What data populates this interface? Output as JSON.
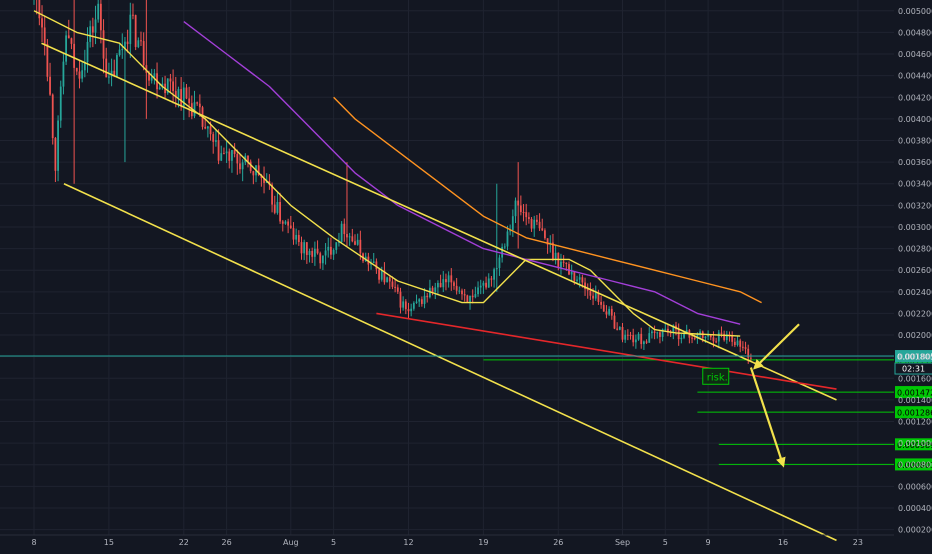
{
  "chart_data": {
    "type": "candlestick",
    "title": "",
    "xlabel": "",
    "ylabel": "",
    "ylim": [
      0.00015,
      0.0051
    ],
    "x_ticks": [
      {
        "label": "8",
        "day": 0
      },
      {
        "label": "15",
        "day": 7
      },
      {
        "label": "22",
        "day": 14
      },
      {
        "label": "26",
        "day": 18
      },
      {
        "label": "Aug",
        "day": 24
      },
      {
        "label": "5",
        "day": 28
      },
      {
        "label": "12",
        "day": 35
      },
      {
        "label": "19",
        "day": 42
      },
      {
        "label": "26",
        "day": 49
      },
      {
        "label": "Sep",
        "day": 55
      },
      {
        "label": "5",
        "day": 59
      },
      {
        "label": "9",
        "day": 63
      },
      {
        "label": "16",
        "day": 70
      },
      {
        "label": "23",
        "day": 77
      }
    ],
    "y_ticks": [
      "0.0002000",
      "0.0004000",
      "0.0006000",
      "0.0008000",
      "0.0010000",
      "0.0012000",
      "0.0014000",
      "0.0016000",
      "0.0018000",
      "0.0020000",
      "0.0022000",
      "0.0024000",
      "0.0026000",
      "0.0028000",
      "0.0030000",
      "0.0032000",
      "0.0034000",
      "0.0036000",
      "0.0038000",
      "0.0040000",
      "0.0042000",
      "0.0044000",
      "0.0046000",
      "0.0048000",
      "0.0050000"
    ],
    "price_path": [
      [
        0.0,
        0.0052
      ],
      [
        1.0,
        0.0048
      ],
      [
        2.0,
        0.0036
      ],
      [
        3.0,
        0.0048
      ],
      [
        4.0,
        0.0044
      ],
      [
        6.0,
        0.005
      ],
      [
        7.0,
        0.0043
      ],
      [
        8.0,
        0.0046
      ],
      [
        9.0,
        0.0049
      ],
      [
        11.0,
        0.0044
      ],
      [
        13.0,
        0.0043
      ],
      [
        15.0,
        0.0041
      ],
      [
        17.0,
        0.0037
      ],
      [
        19.0,
        0.0036
      ],
      [
        21.0,
        0.0035
      ],
      [
        23.0,
        0.0031
      ],
      [
        25.0,
        0.0028
      ],
      [
        27.0,
        0.0027
      ],
      [
        29.0,
        0.003
      ],
      [
        31.0,
        0.0027
      ],
      [
        33.0,
        0.0025
      ],
      [
        35.0,
        0.0022
      ],
      [
        37.0,
        0.0024
      ],
      [
        39.0,
        0.0025
      ],
      [
        41.0,
        0.0023
      ],
      [
        43.0,
        0.0026
      ],
      [
        45.0,
        0.0032
      ],
      [
        47.0,
        0.003
      ],
      [
        49.0,
        0.0027
      ],
      [
        51.0,
        0.0025
      ],
      [
        53.0,
        0.0023
      ],
      [
        55.0,
        0.002
      ],
      [
        57.0,
        0.00195
      ],
      [
        59.0,
        0.00205
      ],
      [
        61.0,
        0.002
      ],
      [
        63.0,
        0.00198
      ],
      [
        65.0,
        0.002
      ],
      [
        66.5,
        0.00185
      ],
      [
        67.0,
        0.0018
      ]
    ],
    "spikes": [
      {
        "day": 3.8,
        "high": 0.0052,
        "low": 0.0034
      },
      {
        "day": 8.5,
        "high": 0.0046,
        "low": 0.0036
      },
      {
        "day": 10.5,
        "high": 0.0052,
        "low": 0.004
      },
      {
        "day": 29.2,
        "high": 0.0036,
        "low": 0.0029
      },
      {
        "day": 43.2,
        "high": 0.0034,
        "low": 0.0024
      },
      {
        "day": 45.3,
        "high": 0.0036,
        "low": 0.0028
      }
    ],
    "series": [
      {
        "color": "#f2e14c",
        "width": 1.4,
        "points": [
          [
            0,
            0.005
          ],
          [
            4,
            0.0048
          ],
          [
            8,
            0.0047
          ],
          [
            12,
            0.0043
          ],
          [
            16,
            0.004
          ],
          [
            20,
            0.0036
          ],
          [
            24,
            0.0032
          ],
          [
            28,
            0.0029
          ],
          [
            31,
            0.0027
          ],
          [
            34,
            0.0025
          ],
          [
            37,
            0.0024
          ],
          [
            40,
            0.0023
          ],
          [
            42,
            0.0023
          ],
          [
            44,
            0.0025
          ],
          [
            46,
            0.0027
          ],
          [
            48,
            0.0027
          ],
          [
            50,
            0.0027
          ],
          [
            52,
            0.0026
          ],
          [
            54,
            0.0024
          ],
          [
            56,
            0.0022
          ],
          [
            58,
            0.00205
          ],
          [
            60,
            0.00202
          ],
          [
            62,
            0.00201
          ],
          [
            64,
            0.002
          ],
          [
            66,
            0.00199
          ]
        ]
      },
      {
        "color": "#a33fd8",
        "width": 1.4,
        "points": [
          [
            14,
            0.0049
          ],
          [
            18,
            0.0046
          ],
          [
            22,
            0.0043
          ],
          [
            26,
            0.0039
          ],
          [
            30,
            0.0035
          ],
          [
            34,
            0.0032
          ],
          [
            38,
            0.003
          ],
          [
            42,
            0.0028
          ],
          [
            46,
            0.0027
          ],
          [
            50,
            0.0026
          ],
          [
            54,
            0.0025
          ],
          [
            58,
            0.0024
          ],
          [
            62,
            0.0022
          ],
          [
            66,
            0.0021
          ]
        ]
      },
      {
        "color": "#ff9320",
        "width": 1.4,
        "points": [
          [
            28,
            0.0042
          ],
          [
            30,
            0.004
          ],
          [
            34,
            0.0037
          ],
          [
            38,
            0.0034
          ],
          [
            42,
            0.0031
          ],
          [
            46,
            0.0029
          ],
          [
            50,
            0.0028
          ],
          [
            54,
            0.0027
          ],
          [
            58,
            0.0026
          ],
          [
            62,
            0.0025
          ],
          [
            66,
            0.0024
          ],
          [
            68,
            0.0023
          ]
        ]
      }
    ],
    "trendlines": [
      {
        "name": "channel-upper-line",
        "color": "#f2e14c",
        "points": [
          [
            0.7,
            0.0047
          ],
          [
            75,
            0.0014
          ]
        ]
      },
      {
        "name": "channel-lower-line",
        "color": "#f2e14c",
        "points": [
          [
            2.8,
            0.0034
          ],
          [
            75,
            0.0001
          ]
        ]
      },
      {
        "name": "red-support-line",
        "color": "#e5272a",
        "points": [
          [
            32,
            0.0022
          ],
          [
            75,
            0.0015
          ]
        ]
      }
    ],
    "price_level": {
      "value": 0.0018059,
      "label": "0.0018059",
      "color": "#26a69a"
    },
    "current_price_tag": {
      "label": "0.0018059",
      "countdown": "02:31"
    },
    "target_levels": [
      {
        "value": 0.0017701,
        "label": "0.0017701",
        "from_day": 42
      },
      {
        "value": 0.0014725,
        "label": "0.0014725",
        "from_day": 62
      },
      {
        "value": 0.0012865,
        "label": "0.0012865",
        "from_day": 62
      },
      {
        "value": 0.000989,
        "label": "0.0009890",
        "from_day": 64
      },
      {
        "value": 0.000803,
        "label": "0.0008030",
        "from_day": 64
      }
    ],
    "annotations": [
      {
        "text": "risk.",
        "day": 62.5,
        "value": 0.0016
      }
    ],
    "arrows": [
      {
        "name": "entry-arrow",
        "from": [
          71.5,
          0.0021
        ],
        "to": [
          67.4,
          0.0017
        ]
      },
      {
        "name": "target-arrow",
        "from": [
          67.0,
          0.0017
        ],
        "to": [
          70.0,
          0.0008
        ]
      }
    ],
    "colors": {
      "background": "#131722",
      "bull": "#26a69a",
      "bear": "#ef5350",
      "level_green": "#00c805",
      "axis_text": "#b2b5be"
    }
  }
}
